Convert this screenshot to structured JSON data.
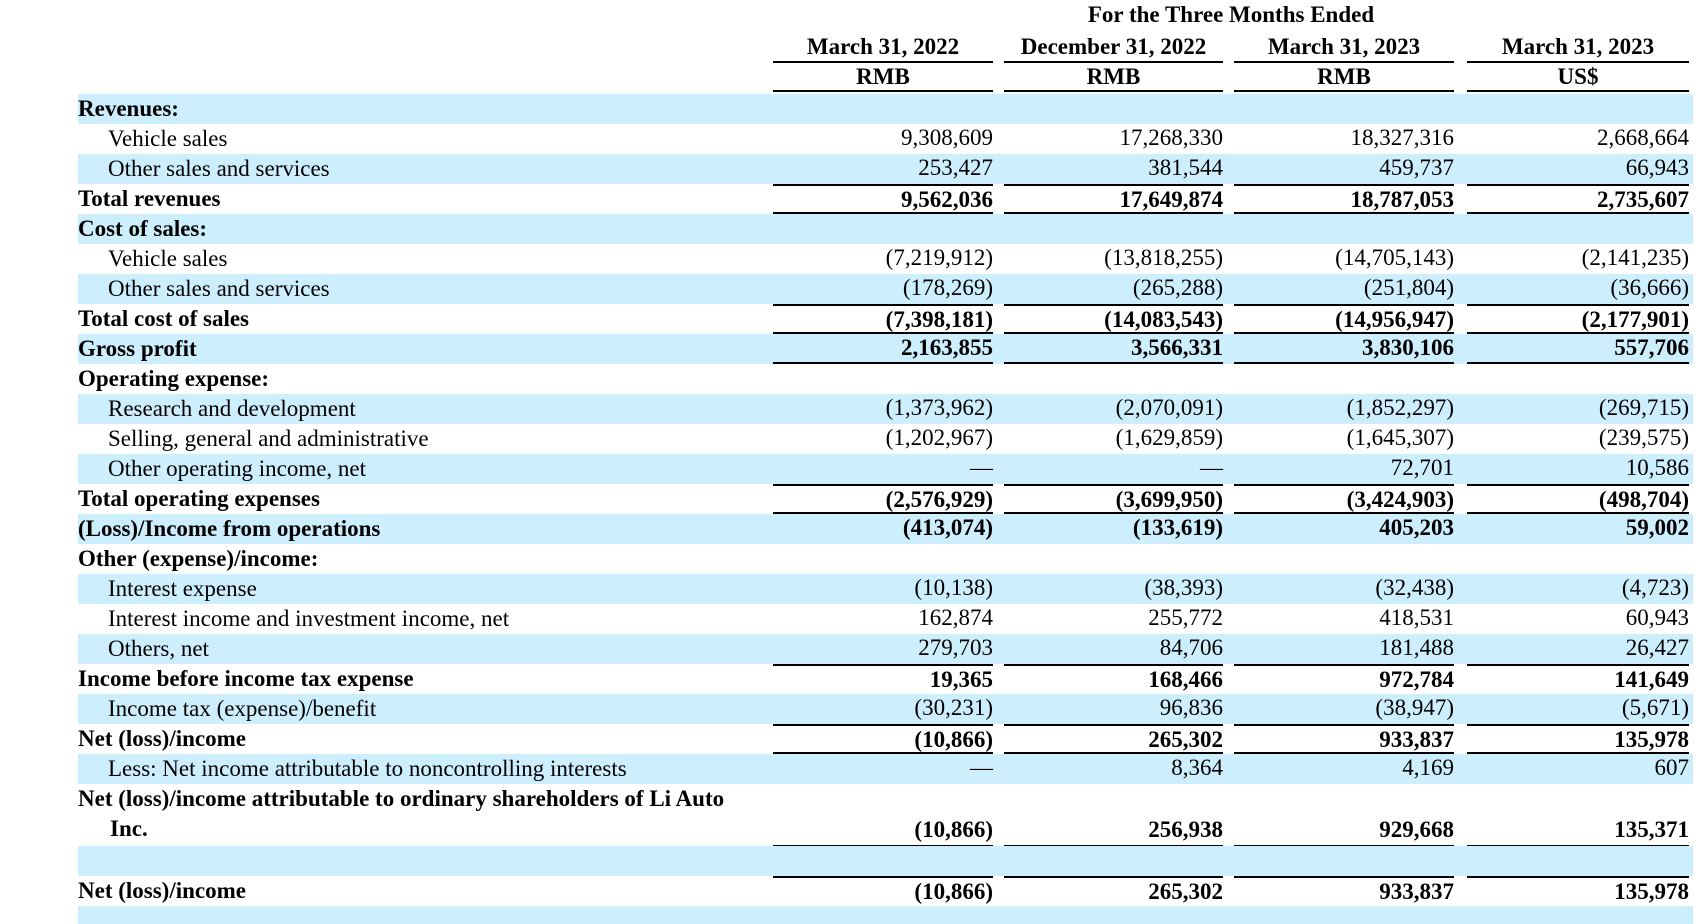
{
  "header": {
    "span_title": "For the Three Months Ended",
    "columns": [
      {
        "date": "March 31, 2022",
        "currency": "RMB"
      },
      {
        "date": "December 31, 2022",
        "currency": "RMB"
      },
      {
        "date": "March 31, 2023",
        "currency": "RMB"
      },
      {
        "date": "March 31, 2023",
        "currency": "US$"
      }
    ]
  },
  "rows": [
    {
      "label": "Revenues:"
    },
    {
      "label": "Vehicle sales",
      "values": [
        "9,308,609",
        "17,268,330",
        "18,327,316",
        "2,668,664"
      ]
    },
    {
      "label": "Other sales and services",
      "values": [
        "253,427",
        "381,544",
        "459,737",
        "66,943"
      ]
    },
    {
      "label": "Total revenues",
      "values": [
        "9,562,036",
        "17,649,874",
        "18,787,053",
        "2,735,607"
      ]
    },
    {
      "label": "Cost of sales:"
    },
    {
      "label": "Vehicle sales",
      "values": [
        "(7,219,912)",
        "(13,818,255)",
        "(14,705,143)",
        "(2,141,235)"
      ]
    },
    {
      "label": "Other sales and services",
      "values": [
        "(178,269)",
        "(265,288)",
        "(251,804)",
        "(36,666)"
      ]
    },
    {
      "label": "Total cost of sales",
      "values": [
        "(7,398,181)",
        "(14,083,543)",
        "(14,956,947)",
        "(2,177,901)"
      ]
    },
    {
      "label": "Gross profit",
      "values": [
        "2,163,855",
        "3,566,331",
        "3,830,106",
        "557,706"
      ]
    },
    {
      "label": "Operating expense:"
    },
    {
      "label": "Research and development",
      "values": [
        "(1,373,962)",
        "(2,070,091)",
        "(1,852,297)",
        "(269,715)"
      ]
    },
    {
      "label": "Selling, general and administrative",
      "values": [
        "(1,202,967)",
        "(1,629,859)",
        "(1,645,307)",
        "(239,575)"
      ]
    },
    {
      "label": "Other operating income, net",
      "values": [
        "—",
        "—",
        "72,701",
        "10,586"
      ]
    },
    {
      "label": "Total operating expenses",
      "values": [
        "(2,576,929)",
        "(3,699,950)",
        "(3,424,903)",
        "(498,704)"
      ]
    },
    {
      "label": "(Loss)/Income from operations",
      "values": [
        "(413,074)",
        "(133,619)",
        "405,203",
        "59,002"
      ]
    },
    {
      "label": "Other (expense)/income:"
    },
    {
      "label": "Interest expense",
      "values": [
        "(10,138)",
        "(38,393)",
        "(32,438)",
        "(4,723)"
      ]
    },
    {
      "label": "Interest income and investment income, net",
      "values": [
        "162,874",
        "255,772",
        "418,531",
        "60,943"
      ]
    },
    {
      "label": "Others, net",
      "values": [
        "279,703",
        "84,706",
        "181,488",
        "26,427"
      ]
    },
    {
      "label": "Income before income tax expense",
      "values": [
        "19,365",
        "168,466",
        "972,784",
        "141,649"
      ]
    },
    {
      "label": "Income tax (expense)/benefit",
      "values": [
        "(30,231)",
        "96,836",
        "(38,947)",
        "(5,671)"
      ]
    },
    {
      "label": "Net (loss)/income",
      "values": [
        "(10,866)",
        "265,302",
        "933,837",
        "135,978"
      ]
    },
    {
      "label": "Less: Net income attributable to noncontrolling interests",
      "values": [
        "—",
        "8,364",
        "4,169",
        "607"
      ]
    },
    {
      "label": "Net (loss)/income attributable to ordinary shareholders of Li Auto Inc.",
      "values": [
        "(10,866)",
        "256,938",
        "929,668",
        "135,371"
      ]
    },
    {
      "label": "Net (loss)/income",
      "values": [
        "(10,866)",
        "265,302",
        "933,837",
        "135,978"
      ]
    }
  ]
}
